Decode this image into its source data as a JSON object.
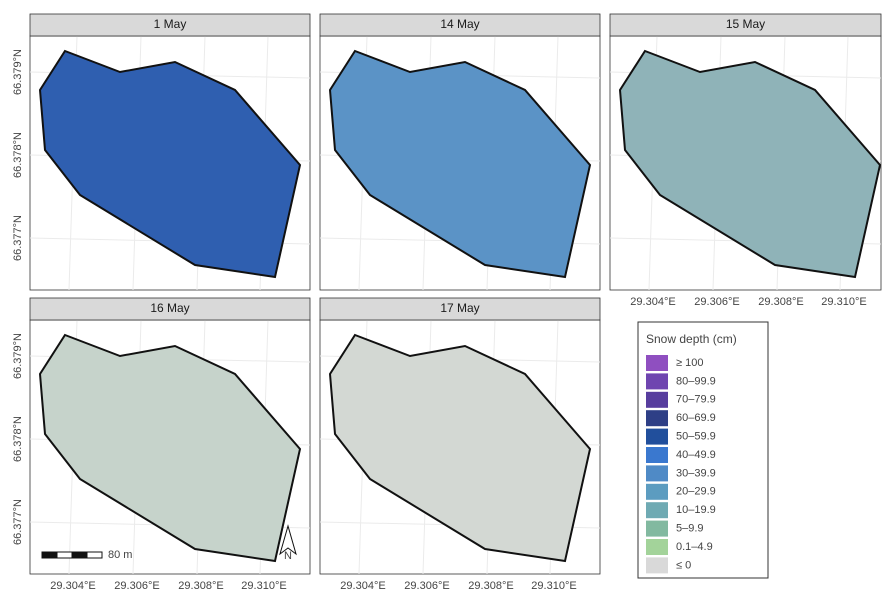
{
  "panels": [
    {
      "title": "1 May",
      "color": "#2f5fb0"
    },
    {
      "title": "14 May",
      "color": "#5b93c6"
    },
    {
      "title": "15 May",
      "color": "#8fb3b8"
    },
    {
      "title": "16 May",
      "color": "#c6d3cb"
    },
    {
      "title": "17 May",
      "color": "#d3d8d3"
    }
  ],
  "lat_ticks": [
    "66.379°N",
    "66.378°N",
    "66.377°N"
  ],
  "lon_ticks": [
    "29.304°E",
    "29.306°E",
    "29.308°E",
    "29.310°E"
  ],
  "scale_bar": "80 m",
  "north": "N",
  "legend": {
    "title": "Snow depth (cm)",
    "items": [
      {
        "label": "≥ 100",
        "color": "#8f4fc0"
      },
      {
        "label": "80–99.9",
        "color": "#6f45b0"
      },
      {
        "label": "70–79.9",
        "color": "#573d9e"
      },
      {
        "label": "60–69.9",
        "color": "#2e3f86"
      },
      {
        "label": "50–59.9",
        "color": "#214f9c"
      },
      {
        "label": "40–49.9",
        "color": "#3a78cf"
      },
      {
        "label": "30–39.9",
        "color": "#4f8ac6"
      },
      {
        "label": "20–29.9",
        "color": "#5c9cc0"
      },
      {
        "label": "10–19.9",
        "color": "#6faab3"
      },
      {
        "label": "5–9.9",
        "color": "#82b9a0"
      },
      {
        "label": "0.1–4.9",
        "color": "#a3d39a"
      },
      {
        "label": "≤ 0",
        "color": "#d9d9d9"
      }
    ]
  }
}
